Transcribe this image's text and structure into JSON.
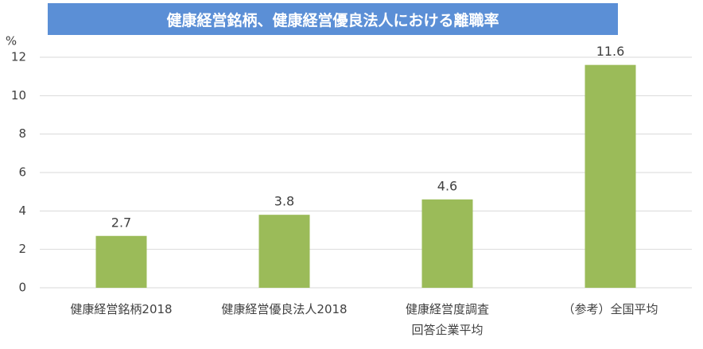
{
  "chart_data": {
    "type": "bar",
    "title": "健康経営銘柄、健康経営優良法人における離職率",
    "y_label": "%",
    "categories": [
      "健康経営銘柄2018",
      "健康経営優良法人2018",
      "健康経営度調査\n回答企業平均",
      "（参考）全国平均"
    ],
    "values": [
      2.7,
      3.8,
      4.6,
      11.6
    ],
    "color": "#9bbb59",
    "ylim": [
      0,
      12
    ],
    "yticks": [
      0,
      2,
      4,
      6,
      8,
      10,
      12
    ],
    "grid": true
  }
}
